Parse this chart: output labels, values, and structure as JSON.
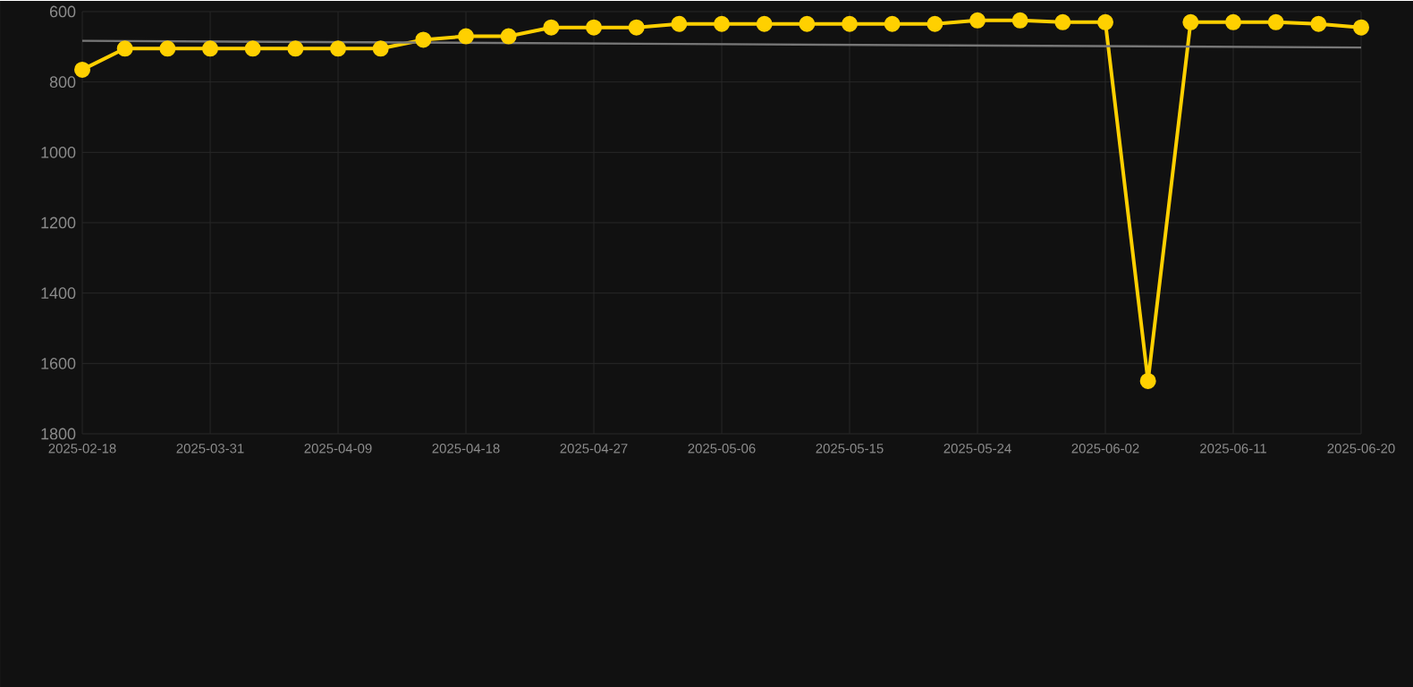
{
  "chart_data": {
    "type": "line",
    "categories": [
      "2025-02-18",
      null,
      null,
      "2025-03-31",
      null,
      null,
      "2025-04-09",
      null,
      null,
      "2025-04-18",
      null,
      null,
      "2025-04-27",
      null,
      null,
      "2025-05-06",
      null,
      null,
      "2025-05-15",
      null,
      null,
      "2025-05-24",
      null,
      null,
      "2025-06-02",
      null,
      null,
      "2025-06-11",
      null,
      null,
      "2025-06-20"
    ],
    "series": [
      {
        "color": "#ffd000",
        "marker": "circle",
        "values": [
          765,
          705,
          705,
          705,
          705,
          705,
          705,
          705,
          680,
          670,
          670,
          645,
          645,
          645,
          635,
          635,
          635,
          635,
          635,
          635,
          635,
          625,
          625,
          630,
          630,
          1650,
          630,
          630,
          630,
          635,
          645
        ]
      },
      {
        "type": "line",
        "color": "#777777",
        "marker": "none",
        "values": [
          683,
          null,
          null,
          null,
          null,
          null,
          null,
          null,
          null,
          null,
          null,
          null,
          null,
          null,
          null,
          null,
          null,
          null,
          null,
          null,
          null,
          null,
          null,
          null,
          null,
          null,
          null,
          null,
          null,
          null,
          702
        ]
      }
    ],
    "ylim": [
      1800,
      600
    ],
    "yticks": [
      600,
      800,
      1000,
      1200,
      1400,
      1600,
      1800
    ],
    "grid": true
  }
}
